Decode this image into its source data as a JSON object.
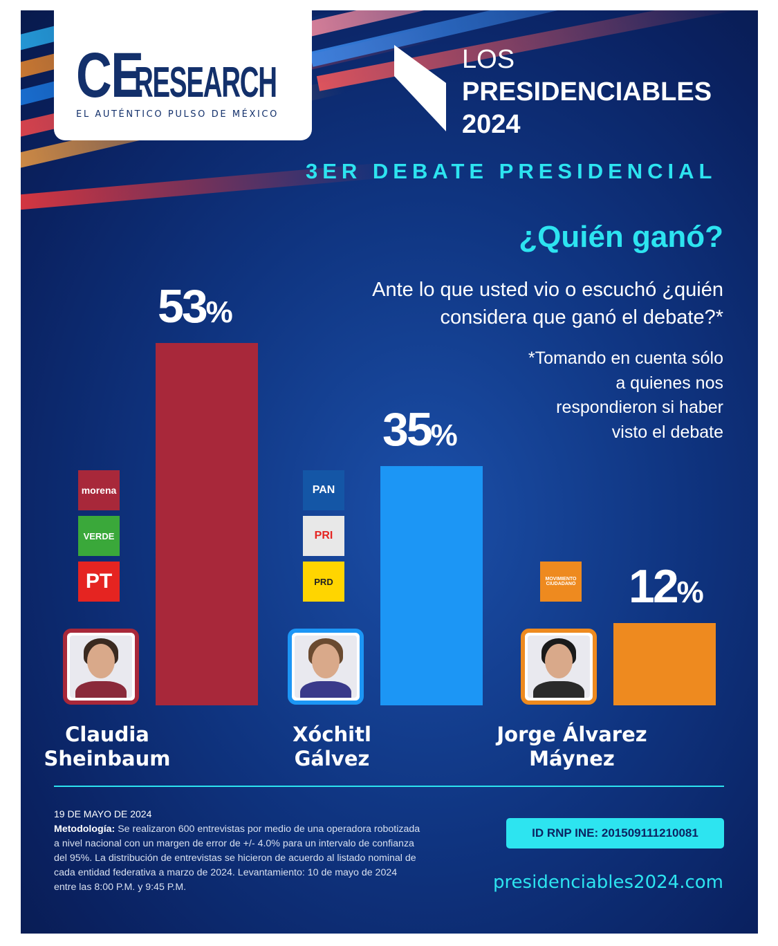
{
  "header": {
    "logo_main": "CE",
    "logo_rest": "RESEARCH",
    "logo_tagline": "EL AUTÉNTICO PULSO DE MÉXICO",
    "series_line1": "LOS",
    "series_line2": "PRESIDENCIABLES",
    "series_line3": "2024",
    "event": "3ER DEBATE PRESIDENCIAL"
  },
  "question": {
    "title": "¿Quién ganó?",
    "text": "Ante lo que usted vio o escuchó ¿quién considera que ganó el debate?*",
    "note": "*Tomando en cuenta sólo a quienes nos respondieron si haber visto el debate"
  },
  "chart_data": {
    "type": "bar",
    "title": "¿Quién ganó?",
    "categories": [
      "Claudia Sheinbaum",
      "Xóchitl Gálvez",
      "Jorge Álvarez Máynez"
    ],
    "values": [
      53,
      35,
      12
    ],
    "unit": "%",
    "ylim": [
      0,
      53
    ],
    "colors": [
      "#a8283a",
      "#1c96f5",
      "#ee8a1f"
    ],
    "parties": [
      [
        "morena",
        "VERDE",
        "PT"
      ],
      [
        "PAN",
        "PRI",
        "PRD"
      ],
      [
        "MOVIMIENTO CIUDADANO"
      ]
    ],
    "name_lines": [
      [
        "Claudia",
        "Sheinbaum"
      ],
      [
        "Xóchitl",
        "Gálvez"
      ],
      [
        "Jorge Álvarez",
        "Máynez"
      ]
    ]
  },
  "footer": {
    "date": "19 DE MAYO DE 2024",
    "method_label": "Metodología:",
    "method_text": " Se realizaron 600 entrevistas por medio de una operadora robotizada a nivel nacional con un margen de error de +/- 4.0% para un intervalo de confianza del 95%. La distribución de entrevistas se hicieron de acuerdo al listado nominal de cada entidad federativa a marzo de 2024. Levantamiento: 10 de mayo de 2024 entre las 8:00 P.M. y 9:45 P.M.",
    "ine": "ID RNP INE:  201509111210081",
    "website": "presidenciables2024.com"
  }
}
